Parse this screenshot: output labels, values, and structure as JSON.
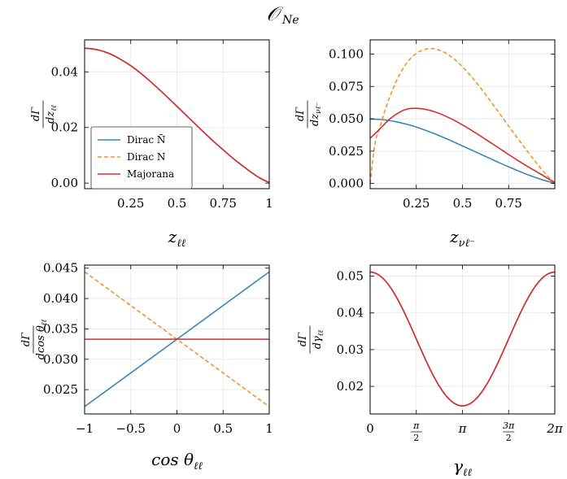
{
  "figure": {
    "title": "𝒪",
    "title_sub": "Ne"
  },
  "legend": {
    "entries": [
      {
        "label": "Dirac N̄",
        "color": "#3a85bb",
        "dash": "solid"
      },
      {
        "label": "Dirac N",
        "color": "#f3922f",
        "dash": "dashed"
      },
      {
        "label": "Majorana",
        "color": "#d62e2e",
        "dash": "solid"
      }
    ]
  },
  "chart_data": [
    {
      "type": "line",
      "id": "zll",
      "xlabel": "z",
      "xlabel_sub": "ℓℓ",
      "ylabel": "dΓ/dz_ℓℓ",
      "ylabel_num": "dΓ",
      "ylabel_den": "dz",
      "ylabel_den_sub": "ℓℓ",
      "xlim": [
        0.0,
        1.0
      ],
      "ylim": [
        -0.002,
        0.0515
      ],
      "xticks": [
        {
          "v": 0.25,
          "label": "0.25"
        },
        {
          "v": 0.5,
          "label": "0.5"
        },
        {
          "v": 0.75,
          "label": "0.75"
        },
        {
          "v": 1.0,
          "label": "1"
        }
      ],
      "yticks": [
        {
          "v": 0.0,
          "label": "0.00"
        },
        {
          "v": 0.02,
          "label": "0.02"
        },
        {
          "v": 0.04,
          "label": "0.04"
        }
      ],
      "series": [
        {
          "name": "Dirac N̄",
          "color": "#3a85bb",
          "dash": "solid",
          "x": [
            0,
            0.05,
            0.1,
            0.15,
            0.2,
            0.25,
            0.3,
            0.35,
            0.4,
            0.45,
            0.5,
            0.55,
            0.6,
            0.65,
            0.7,
            0.75,
            0.8,
            0.85,
            0.9,
            0.95,
            1.0
          ],
          "y": [
            0.0485,
            0.0482,
            0.0474,
            0.0461,
            0.0443,
            0.0422,
            0.0397,
            0.0369,
            0.0339,
            0.0308,
            0.0276,
            0.0244,
            0.0212,
            0.018,
            0.0149,
            0.012,
            0.0091,
            0.0065,
            0.004,
            0.0018,
            0.0002
          ]
        },
        {
          "name": "Dirac N",
          "color": "#f3922f",
          "dash": "dashed",
          "x": [
            0,
            0.05,
            0.1,
            0.15,
            0.2,
            0.25,
            0.3,
            0.35,
            0.4,
            0.45,
            0.5,
            0.55,
            0.6,
            0.65,
            0.7,
            0.75,
            0.8,
            0.85,
            0.9,
            0.95,
            1.0
          ],
          "y": [
            0.0485,
            0.0482,
            0.0474,
            0.0461,
            0.0443,
            0.0422,
            0.0397,
            0.0369,
            0.0339,
            0.0308,
            0.0276,
            0.0244,
            0.0212,
            0.018,
            0.0149,
            0.012,
            0.0091,
            0.0065,
            0.004,
            0.0018,
            0.0002
          ]
        },
        {
          "name": "Majorana",
          "color": "#d62e2e",
          "dash": "solid",
          "x": [
            0,
            0.05,
            0.1,
            0.15,
            0.2,
            0.25,
            0.3,
            0.35,
            0.4,
            0.45,
            0.5,
            0.55,
            0.6,
            0.65,
            0.7,
            0.75,
            0.8,
            0.85,
            0.9,
            0.95,
            1.0
          ],
          "y": [
            0.0485,
            0.0482,
            0.0474,
            0.0461,
            0.0443,
            0.0422,
            0.0397,
            0.0369,
            0.0339,
            0.0308,
            0.0276,
            0.0244,
            0.0212,
            0.018,
            0.0149,
            0.012,
            0.0091,
            0.0065,
            0.004,
            0.0018,
            0.0002
          ]
        }
      ]
    },
    {
      "type": "line",
      "id": "znul",
      "xlabel": "z",
      "xlabel_sub": "νℓ⁻",
      "ylabel": "dΓ/dz_νℓ⁻",
      "ylabel_num": "dΓ",
      "ylabel_den": "dz",
      "ylabel_den_sub": "νℓ⁻",
      "xlim": [
        0.0,
        1.0
      ],
      "ylim": [
        -0.004,
        0.111
      ],
      "xticks": [
        {
          "v": 0.25,
          "label": "0.25"
        },
        {
          "v": 0.5,
          "label": "0.5"
        },
        {
          "v": 0.75,
          "label": "0.75"
        }
      ],
      "yticks": [
        {
          "v": 0.0,
          "label": "0.000"
        },
        {
          "v": 0.025,
          "label": "0.025"
        },
        {
          "v": 0.05,
          "label": "0.050"
        },
        {
          "v": 0.075,
          "label": "0.075"
        },
        {
          "v": 0.1,
          "label": "0.100"
        }
      ],
      "series": [
        {
          "name": "Dirac N̄",
          "color": "#3a85bb",
          "dash": "solid",
          "x": [
            0,
            0.05,
            0.1,
            0.15,
            0.2,
            0.25,
            0.3,
            0.35,
            0.4,
            0.45,
            0.5,
            0.55,
            0.6,
            0.65,
            0.7,
            0.75,
            0.8,
            0.85,
            0.9,
            0.95,
            1.0
          ],
          "y": [
            0.0498,
            0.0495,
            0.0487,
            0.0474,
            0.0457,
            0.0436,
            0.0411,
            0.0384,
            0.0354,
            0.0323,
            0.029,
            0.0258,
            0.0225,
            0.0193,
            0.016,
            0.0129,
            0.0099,
            0.007,
            0.0044,
            0.0021,
            0.0003
          ]
        },
        {
          "name": "Dirac N",
          "color": "#f3922f",
          "dash": "dashed",
          "x": [
            0,
            0.025,
            0.05,
            0.1,
            0.15,
            0.2,
            0.25,
            0.3,
            0.33,
            0.35,
            0.4,
            0.45,
            0.5,
            0.55,
            0.6,
            0.65,
            0.7,
            0.75,
            0.8,
            0.85,
            0.9,
            0.95,
            1.0
          ],
          "y": [
            0.0,
            0.0295,
            0.0425,
            0.0645,
            0.0815,
            0.0935,
            0.1005,
            0.1038,
            0.1042,
            0.104,
            0.1015,
            0.0968,
            0.0902,
            0.0823,
            0.0735,
            0.064,
            0.0543,
            0.0444,
            0.0347,
            0.0252,
            0.016,
            0.0075,
            0.0005
          ]
        },
        {
          "name": "Majorana",
          "color": "#d62e2e",
          "dash": "solid",
          "x": [
            0,
            0.05,
            0.1,
            0.15,
            0.2,
            0.25,
            0.3,
            0.35,
            0.4,
            0.45,
            0.5,
            0.55,
            0.6,
            0.65,
            0.7,
            0.75,
            0.8,
            0.85,
            0.9,
            0.95,
            1.0
          ],
          "y": [
            0.0349,
            0.0418,
            0.049,
            0.0543,
            0.0575,
            0.0581,
            0.0573,
            0.0554,
            0.0526,
            0.0492,
            0.0453,
            0.041,
            0.0365,
            0.0318,
            0.0271,
            0.0224,
            0.0178,
            0.0134,
            0.0092,
            0.005,
            0.0005
          ]
        }
      ]
    },
    {
      "type": "line",
      "id": "costheta",
      "xlabel": "cos θ",
      "xlabel_sub": "ℓℓ",
      "ylabel": "dΓ/dcosθ_ℓℓ",
      "ylabel_num": "dΓ",
      "ylabel_den": "dcos θ",
      "ylabel_den_sub": "ℓℓ",
      "xlim": [
        -1.0,
        1.0
      ],
      "ylim": [
        0.021,
        0.0455
      ],
      "xticks": [
        {
          "v": -1.0,
          "label": "−1"
        },
        {
          "v": -0.5,
          "label": "−0.5"
        },
        {
          "v": 0.0,
          "label": "0"
        },
        {
          "v": 0.5,
          "label": "0.5"
        },
        {
          "v": 1.0,
          "label": "1"
        }
      ],
      "yticks": [
        {
          "v": 0.025,
          "label": "0.025"
        },
        {
          "v": 0.03,
          "label": "0.030"
        },
        {
          "v": 0.035,
          "label": "0.035"
        },
        {
          "v": 0.04,
          "label": "0.040"
        },
        {
          "v": 0.045,
          "label": "0.045"
        }
      ],
      "series": [
        {
          "name": "Dirac N̄",
          "color": "#3a85bb",
          "dash": "solid",
          "x": [
            -1.0,
            1.0
          ],
          "y": [
            0.0222,
            0.0444
          ]
        },
        {
          "name": "Dirac N",
          "color": "#f3922f",
          "dash": "dashed",
          "x": [
            -1.0,
            1.0
          ],
          "y": [
            0.0444,
            0.0222
          ]
        },
        {
          "name": "Majorana",
          "color": "#d62e2e",
          "dash": "solid",
          "x": [
            -1.0,
            1.0
          ],
          "y": [
            0.0333,
            0.0333
          ]
        }
      ]
    },
    {
      "type": "line",
      "id": "gamma",
      "xlabel": "γ",
      "xlabel_sub": "ℓℓ",
      "ylabel": "dΓ/dγ_ℓℓ",
      "ylabel_num": "dΓ",
      "ylabel_den": "dγ",
      "ylabel_den_sub": "ℓℓ",
      "xlim": [
        0.0,
        6.2832
      ],
      "ylim": [
        0.0125,
        0.053
      ],
      "xticks": [
        {
          "v": 0.0,
          "label": "0",
          "frac": null
        },
        {
          "v": 1.5708,
          "label": "π/2",
          "frac": [
            "π",
            "2"
          ]
        },
        {
          "v": 3.1416,
          "label": "π",
          "frac": null
        },
        {
          "v": 4.7124,
          "label": "3π/2",
          "frac": [
            "3π",
            "2"
          ]
        },
        {
          "v": 6.2832,
          "label": "2π",
          "frac": null
        }
      ],
      "yticks": [
        {
          "v": 0.02,
          "label": "0.02"
        },
        {
          "v": 0.03,
          "label": "0.03"
        },
        {
          "v": 0.04,
          "label": "0.04"
        },
        {
          "v": 0.05,
          "label": "0.05"
        }
      ],
      "curve": {
        "kind": "cosine",
        "mean": 0.0329,
        "amplitude": 0.0182
      },
      "series": [
        {
          "name": "Dirac N̄",
          "color": "#3a85bb",
          "dash": "solid"
        },
        {
          "name": "Dirac N",
          "color": "#f3922f",
          "dash": "dashed"
        },
        {
          "name": "Majorana",
          "color": "#d62e2e",
          "dash": "solid"
        }
      ]
    }
  ]
}
